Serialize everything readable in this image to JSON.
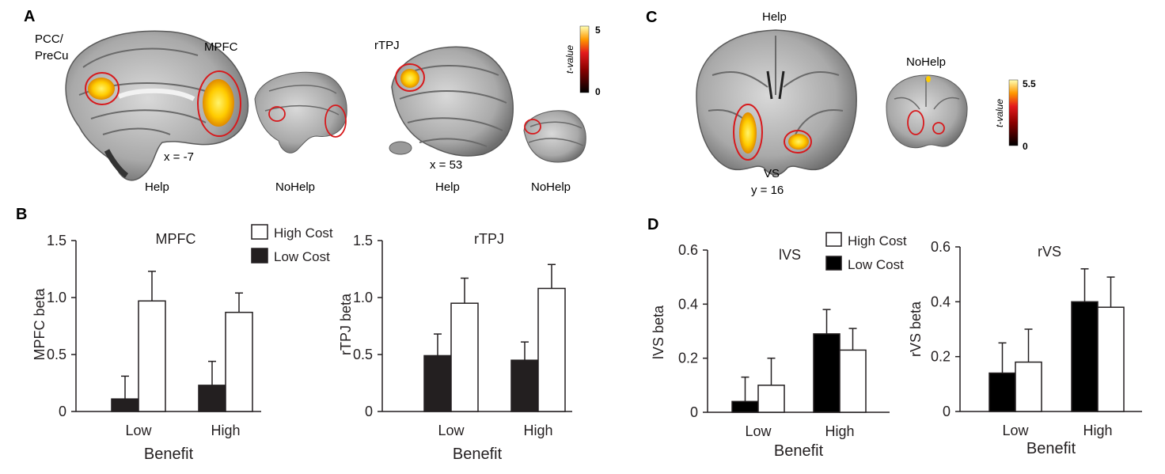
{
  "panel_a": {
    "letter": "A",
    "roi_labels": {
      "pcc": "PCC/",
      "precu": "PreCu",
      "mpfc": "MPFC",
      "rtpj": "rTPJ"
    },
    "coords": {
      "medial": "x = -7",
      "lateral": "x = 53"
    },
    "conditions": {
      "help_left": "Help",
      "nohelp_left": "NoHelp",
      "help_right": "Help",
      "nohelp_right": "NoHelp"
    },
    "colorbar": {
      "label": "t-value",
      "max": "5",
      "min": "0"
    }
  },
  "panel_c": {
    "letter": "C",
    "conditions": {
      "help": "Help",
      "nohelp": "NoHelp"
    },
    "roi_label": "VS",
    "coord": "y = 16",
    "colorbar": {
      "label": "t-value",
      "max": "5.5",
      "min": "0"
    }
  },
  "panel_b_letter": "B",
  "panel_d_letter": "D",
  "chart_data": [
    {
      "type": "bar",
      "panel": "B",
      "title": "MPFC",
      "xlabel": "Benefit",
      "ylabel": "MPFC beta",
      "categories": [
        "Low",
        "High"
      ],
      "ylim": [
        0,
        1.5
      ],
      "yticks": [
        "0",
        "0.5",
        "1.0",
        "1.5"
      ],
      "legend": "top-right",
      "series": [
        {
          "name": "High Cost",
          "color": "#ffffff",
          "values": [
            0.97,
            0.87
          ],
          "error": [
            0.26,
            0.17
          ]
        },
        {
          "name": "Low Cost",
          "color": "#231f20",
          "values": [
            0.11,
            0.23
          ],
          "error": [
            0.2,
            0.21
          ]
        }
      ]
    },
    {
      "type": "bar",
      "panel": "B",
      "title": "rTPJ",
      "xlabel": "Benefit",
      "ylabel": "rTPJ beta",
      "categories": [
        "Low",
        "High"
      ],
      "ylim": [
        0,
        1.5
      ],
      "yticks": [
        "0",
        "0.5",
        "1.0",
        "1.5"
      ],
      "series": [
        {
          "name": "High Cost",
          "color": "#ffffff",
          "values": [
            0.95,
            1.08
          ],
          "error": [
            0.22,
            0.21
          ]
        },
        {
          "name": "Low Cost",
          "color": "#231f20",
          "values": [
            0.49,
            0.45
          ],
          "error": [
            0.19,
            0.16
          ]
        }
      ]
    },
    {
      "type": "bar",
      "panel": "D",
      "title": "lVS",
      "xlabel": "Benefit",
      "ylabel": "lVS beta",
      "categories": [
        "Low",
        "High"
      ],
      "ylim": [
        0,
        0.6
      ],
      "yticks": [
        "0",
        "0.2",
        "0.4",
        "0.6"
      ],
      "legend": "top-right",
      "series": [
        {
          "name": "High Cost",
          "color": "#ffffff",
          "values": [
            0.1,
            0.23
          ],
          "error": [
            0.1,
            0.08
          ]
        },
        {
          "name": "Low Cost",
          "color": "#000000",
          "values": [
            0.04,
            0.29
          ],
          "error": [
            0.09,
            0.09
          ]
        }
      ]
    },
    {
      "type": "bar",
      "panel": "D",
      "title": "rVS",
      "xlabel": "Benefit",
      "ylabel": "rVS beta",
      "categories": [
        "Low",
        "High"
      ],
      "ylim": [
        0,
        0.6
      ],
      "yticks": [
        "0",
        "0.2",
        "0.4",
        "0.6"
      ],
      "series": [
        {
          "name": "High Cost",
          "color": "#ffffff",
          "values": [
            0.18,
            0.38
          ],
          "error": [
            0.12,
            0.11
          ]
        },
        {
          "name": "Low Cost",
          "color": "#000000",
          "values": [
            0.14,
            0.4
          ],
          "error": [
            0.11,
            0.12
          ]
        }
      ]
    }
  ]
}
